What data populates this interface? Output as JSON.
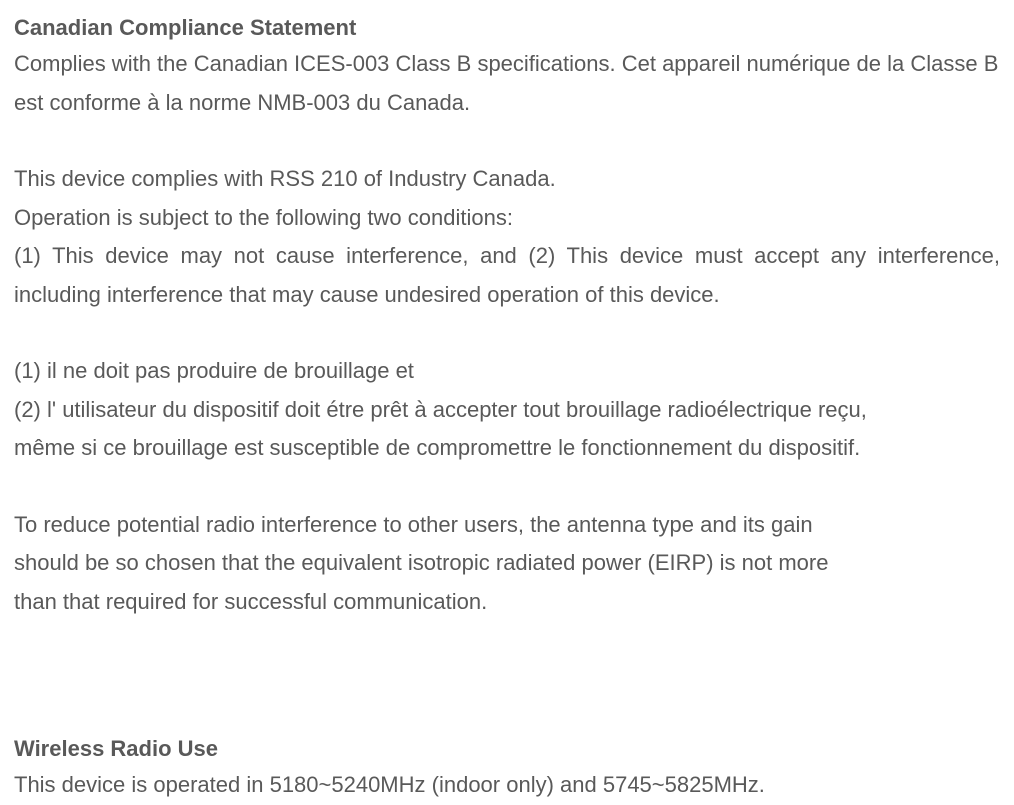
{
  "document": {
    "text_color": "#595959",
    "background_color": "#ffffff",
    "font_family": "Arial",
    "font_size_pt": 16,
    "sections": {
      "canadian_compliance": {
        "heading": "Canadian Compliance Statement",
        "p1": "Complies with the Canadian ICES-003 Class B specifications. Cet appareil numérique de la Classe B est conforme à la norme NMB-003 du Canada.",
        "p2": "This device complies with RSS 210 of Industry Canada.",
        "p3": "Operation is subject to the following two conditions:",
        "p4": "(1) This device may not cause interference, and (2) This device must accept any interference, including interference that may cause undesired operation of this device.",
        "p5": "(1) il ne doit pas produire de brouillage et",
        "p6": "(2) l' utilisateur du dispositif doit étre prêt à accepter tout brouillage radioélectrique reçu,",
        "p7": "même si ce brouillage est susceptible de compromettre le fonctionnement du dispositif.",
        "p8": "To reduce potential radio interference to other users, the antenna type and its gain",
        "p9": "should be so chosen that the equivalent isotropic radiated power (EIRP) is not more",
        "p10": "than that required for successful communication."
      },
      "wireless_radio": {
        "heading": "Wireless Radio Use",
        "p1": "This device is operated in 5180~5240MHz (indoor only) and 5745~5825MHz."
      }
    }
  }
}
